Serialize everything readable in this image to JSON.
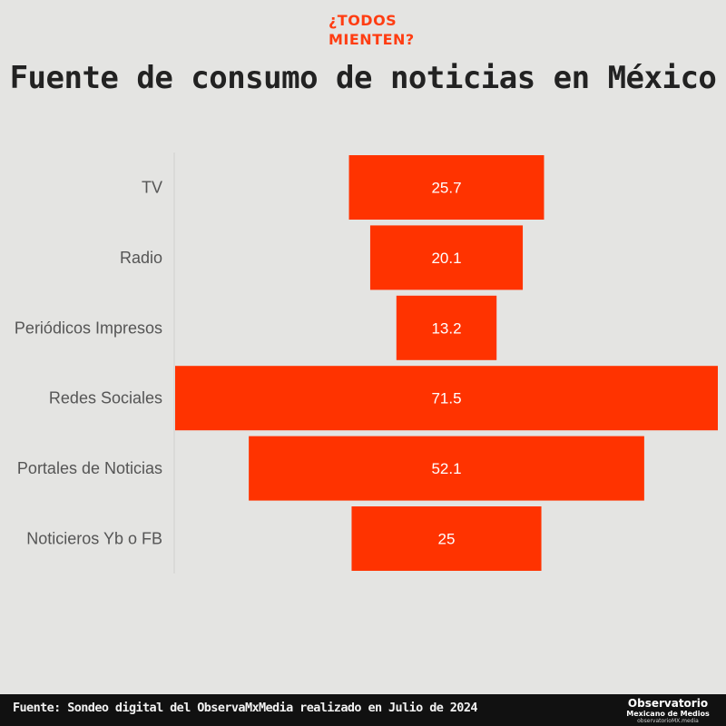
{
  "brand": {
    "line1": "¿TODOS",
    "line2": "MIENTEN?"
  },
  "footer": {
    "source": "Fuente: Sondeo digital del ObservaMxMedia realizado en Julio de 2024",
    "logo_line1": "Observatorio",
    "logo_line2": "Mexicano de Medios",
    "logo_line3": "observatorioMX.media"
  },
  "colors": {
    "bar": "#ff3300",
    "background": "#e4e4e2",
    "footer": "#111111",
    "brand": "#ff3d12"
  },
  "chart_data": {
    "type": "bar",
    "orientation": "horizontal",
    "alignment": "centered (funnel)",
    "title": "Fuente de consumo de noticias en México",
    "categories": [
      "TV",
      "Radio",
      "Periódicos Impresos",
      "Redes Sociales",
      "Portales de Noticias",
      "Noticieros Yb o FB"
    ],
    "values": [
      25.7,
      20.1,
      13.2,
      71.5,
      52.1,
      25
    ],
    "value_labels": [
      "25.7",
      "20.1",
      "13.2",
      "71.5",
      "52.1",
      "25"
    ],
    "xlim": [
      0,
      71.5
    ],
    "grid": false,
    "legend": "none"
  }
}
